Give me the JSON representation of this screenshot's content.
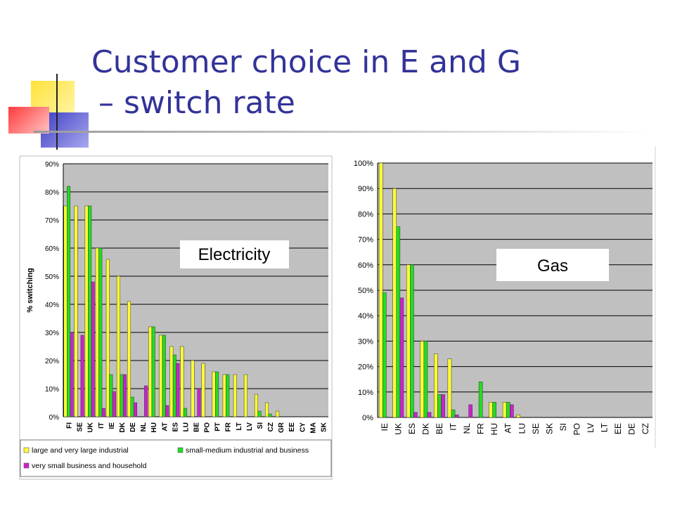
{
  "slide": {
    "title_line1": "Customer choice in E and G",
    "title_line2": "– switch rate"
  },
  "colors": {
    "title": "#333399",
    "series_yellow": "#ffff33",
    "series_green": "#22dd22",
    "series_magenta": "#cc22cc",
    "plot_background": "#c0c0c0"
  },
  "chart_data": [
    {
      "type": "bar",
      "label_box": "Electricity",
      "ylabel": "% switching",
      "ylim": [
        0,
        90
      ],
      "yticks": [
        "0%",
        "10%",
        "20%",
        "30%",
        "40%",
        "50%",
        "60%",
        "70%",
        "80%",
        "90%"
      ],
      "grid": true,
      "legend_position": "bottom",
      "categories": [
        "FI",
        "SE",
        "UK",
        "IT",
        "IE",
        "DK",
        "DE",
        "NL",
        "HU",
        "AT",
        "ES",
        "LU",
        "BE",
        "PO",
        "PT",
        "FR",
        "LT",
        "LV",
        "SI",
        "CZ",
        "GR",
        "EE",
        "CY",
        "MA",
        "SK"
      ],
      "series": [
        {
          "name": "large and very large industrial",
          "color": "#ffff33",
          "values": [
            75,
            75,
            75,
            60,
            56,
            50,
            41,
            0,
            32,
            29,
            25,
            25,
            20,
            19,
            16,
            15,
            15,
            15,
            8,
            5,
            2,
            0,
            0,
            0,
            0
          ]
        },
        {
          "name": "small-medium industrial and business",
          "color": "#22dd22",
          "values": [
            82,
            0,
            75,
            60,
            15,
            15,
            7,
            0,
            32,
            29,
            22,
            3,
            0,
            0,
            16,
            15,
            0,
            0,
            2,
            1,
            0,
            0,
            0,
            0,
            0
          ]
        },
        {
          "name": "very small business and household",
          "color": "#cc22cc",
          "values": [
            30,
            29,
            48,
            3,
            9,
            15,
            5,
            11,
            0,
            4,
            19,
            0,
            10,
            0,
            0,
            0,
            0,
            0,
            0,
            0,
            0,
            0,
            0,
            0,
            0
          ]
        }
      ]
    },
    {
      "type": "bar",
      "label_box": "Gas",
      "ylim": [
        0,
        100
      ],
      "yticks": [
        "0%",
        "10%",
        "20%",
        "30%",
        "40%",
        "50%",
        "60%",
        "70%",
        "80%",
        "90%",
        "100%"
      ],
      "grid": true,
      "categories": [
        "IE",
        "UK",
        "ES",
        "DK",
        "BE",
        "IT",
        "NL",
        "FR",
        "HU",
        "AT",
        "LU",
        "SE",
        "SK",
        "SI",
        "PO",
        "LV",
        "LT",
        "EE",
        "DE",
        "CZ"
      ],
      "series": [
        {
          "color": "#ffff33",
          "values": [
            100,
            90,
            60,
            30,
            25,
            23,
            0,
            0,
            6,
            6,
            1,
            0,
            0,
            0,
            0,
            0,
            0,
            0,
            0,
            0
          ]
        },
        {
          "color": "#22dd22",
          "values": [
            49,
            75,
            60,
            30,
            9,
            3,
            0,
            14,
            6,
            6,
            0,
            0,
            0,
            0,
            0,
            0,
            0,
            0,
            0,
            0
          ]
        },
        {
          "color": "#cc22cc",
          "values": [
            0,
            47,
            2,
            2,
            9,
            1,
            5,
            0,
            0,
            5,
            0,
            0,
            0,
            0,
            0,
            0,
            0,
            0,
            0,
            0
          ]
        }
      ]
    }
  ]
}
